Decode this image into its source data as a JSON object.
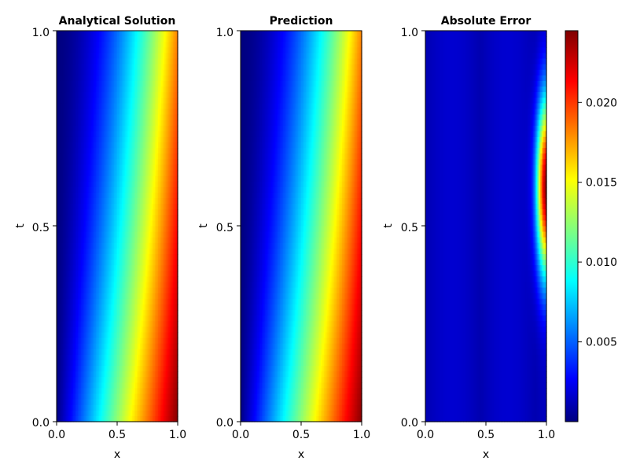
{
  "chart_data": [
    {
      "type": "heatmap",
      "title": "Analytical Solution",
      "xlabel": "x",
      "ylabel": "t",
      "xlim": [
        0,
        1
      ],
      "ylim": [
        0,
        1
      ],
      "x_ticks": [
        "0.0",
        "0.5",
        "1.0"
      ],
      "y_ticks": [
        "0.0",
        "0.5",
        "1.0"
      ],
      "colormap": "jet",
      "value_range": [
        0,
        1
      ],
      "description_values": {
        "at_t0": {
          "x": [
            0.0,
            0.25,
            0.5,
            0.75,
            1.0
          ],
          "value": [
            0.0,
            0.33,
            0.6,
            0.85,
            1.0
          ]
        },
        "at_t1": {
          "x": [
            0.0,
            0.25,
            0.5,
            0.75,
            1.0
          ],
          "value": [
            0.0,
            0.25,
            0.45,
            0.62,
            0.75
          ]
        }
      }
    },
    {
      "type": "heatmap",
      "title": "Prediction",
      "xlabel": "x",
      "ylabel": "t",
      "xlim": [
        0,
        1
      ],
      "ylim": [
        0,
        1
      ],
      "x_ticks": [
        "0.0",
        "0.5",
        "1.0"
      ],
      "y_ticks": [
        "0.0",
        "0.5",
        "1.0"
      ],
      "colormap": "jet",
      "value_range": [
        0,
        1
      ]
    },
    {
      "type": "heatmap",
      "title": "Absolute Error",
      "xlabel": "x",
      "ylabel": "t",
      "xlim": [
        0,
        1
      ],
      "ylim": [
        0,
        1
      ],
      "x_ticks": [
        "0.0",
        "0.5",
        "1.0"
      ],
      "y_ticks": [
        "0.0",
        "0.5",
        "1.0"
      ],
      "colormap": "jet",
      "value_range": [
        0,
        0.0245
      ],
      "peak": {
        "x": 1.0,
        "t": 0.6,
        "value": 0.0235
      },
      "colorbar_ticks": [
        "0.005",
        "0.010",
        "0.015",
        "0.020"
      ],
      "colorbar_tick_values": [
        0.005,
        0.01,
        0.015,
        0.02
      ]
    }
  ],
  "colors": {
    "jet_stops": [
      "#00007f",
      "#0000ff",
      "#00ffff",
      "#ffff00",
      "#ff0000",
      "#7f0000"
    ]
  }
}
